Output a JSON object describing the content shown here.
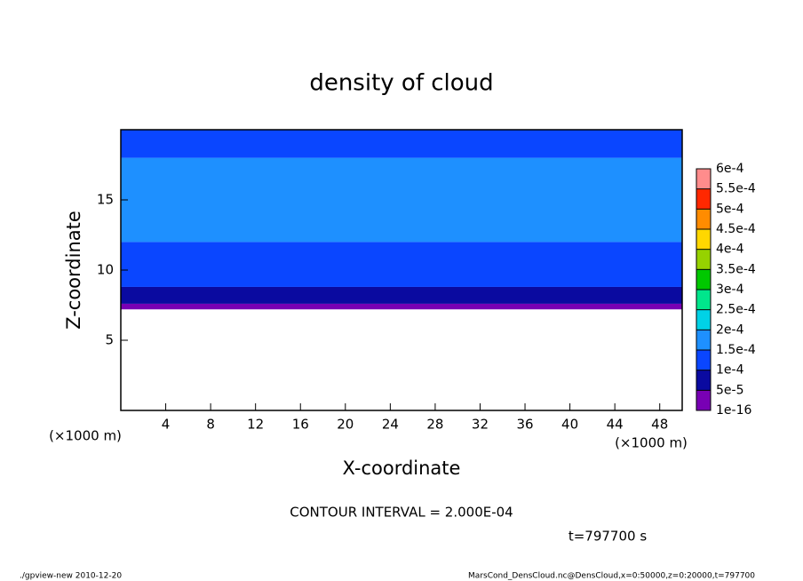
{
  "chart_data": {
    "type": "contour",
    "title": "density of cloud",
    "xlabel": "X-coordinate",
    "ylabel": "Z-coordinate",
    "xunit": "(×1000 m)",
    "yunit": "(×1000 m)",
    "annotation": "CONTOUR INTERVAL = 2.000E-04",
    "time_label": "t=797700 s",
    "footer_left": "./gpview-new  2010-12-20",
    "footer_right": "MarsCond_DensCloud.nc@DensCloud,x=0:50000,z=0:20000,t=797700",
    "xlim": [
      0,
      50
    ],
    "xticks": [
      4,
      8,
      12,
      16,
      20,
      24,
      28,
      32,
      36,
      40,
      44,
      48
    ],
    "ylim": [
      0,
      20
    ],
    "yticks": [
      5,
      10,
      15
    ],
    "z_bins": [
      7.2,
      7.6,
      8.8,
      12,
      18,
      20
    ],
    "values": [
      3e-05,
      7e-05,
      0.00012,
      0.00017,
      0.00012
    ],
    "levels": [
      {
        "value": 1e-16,
        "label": "1e-16"
      },
      {
        "value": 5e-05,
        "label": "5e-5"
      },
      {
        "value": 0.0001,
        "label": "1e-4"
      },
      {
        "value": 0.00015,
        "label": "1.5e-4"
      },
      {
        "value": 0.0002,
        "label": "2e-4"
      },
      {
        "value": 0.00025,
        "label": "2.5e-4"
      },
      {
        "value": 0.0003,
        "label": "3e-4"
      },
      {
        "value": 0.00035,
        "label": "3.5e-4"
      },
      {
        "value": 0.0004,
        "label": "4e-4"
      },
      {
        "value": 0.00045,
        "label": "4.5e-4"
      },
      {
        "value": 0.0005,
        "label": "5e-4"
      },
      {
        "value": 0.00055,
        "label": "5.5e-4"
      },
      {
        "value": 0.0006,
        "label": "6e-4"
      }
    ],
    "colors": [
      "#7800b4",
      "#0a0aa0",
      "#0a46ff",
      "#1e90ff",
      "#00d2e6",
      "#00e68c",
      "#00c800",
      "#96d200",
      "#ffd700",
      "#ff8c00",
      "#ff2800",
      "#ff8c8c"
    ]
  }
}
